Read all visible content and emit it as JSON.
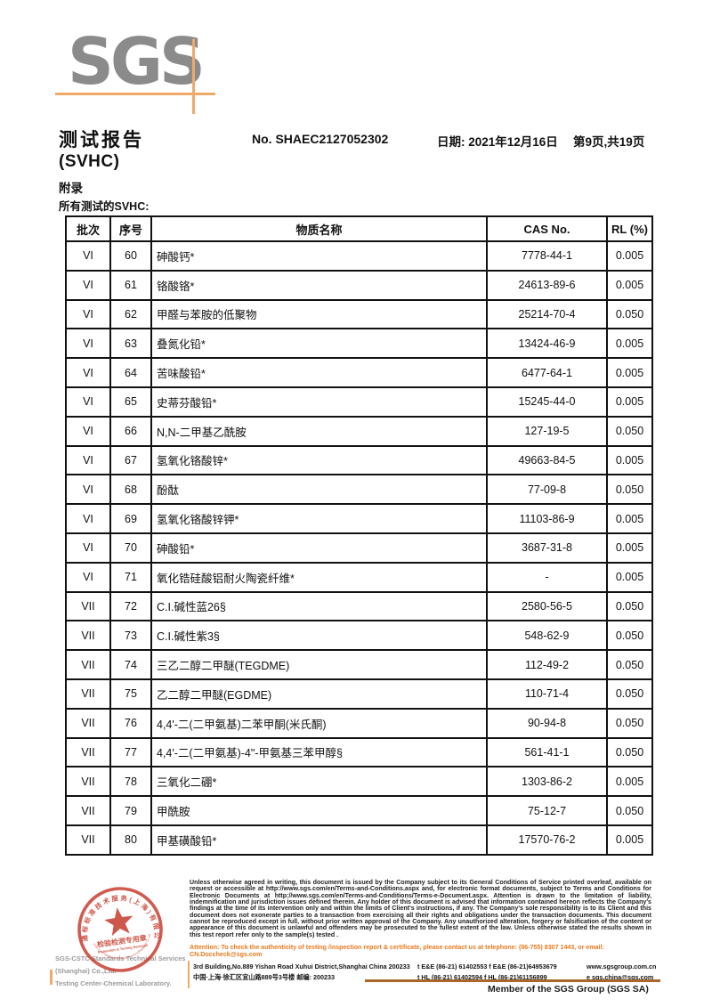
{
  "logo": {
    "text": "SGS"
  },
  "header": {
    "title": "测试报告",
    "subtitle": "(SVHC)",
    "report_no": "No. SHAEC2127052302",
    "date": "日期: 2021年12月16日",
    "page_info": "第9页,共19页",
    "appendix": "附录",
    "section_heading": "所有测试的SVHC:"
  },
  "table": {
    "columns": [
      "批次",
      "序号",
      "物质名称",
      "CAS No.",
      "RL (%)"
    ],
    "rows": [
      {
        "batch": "VI",
        "no": "60",
        "name": "砷酸钙*",
        "cas": "7778-44-1",
        "rl": "0.005"
      },
      {
        "batch": "VI",
        "no": "61",
        "name": "铬酸铬*",
        "cas": "24613-89-6",
        "rl": "0.005"
      },
      {
        "batch": "VI",
        "no": "62",
        "name": "甲醛与苯胺的低聚物",
        "cas": "25214-70-4",
        "rl": "0.050"
      },
      {
        "batch": "VI",
        "no": "63",
        "name": "叠氮化铅*",
        "cas": "13424-46-9",
        "rl": "0.005"
      },
      {
        "batch": "VI",
        "no": "64",
        "name": "苦味酸铅*",
        "cas": "6477-64-1",
        "rl": "0.005"
      },
      {
        "batch": "VI",
        "no": "65",
        "name": "史蒂芬酸铅*",
        "cas": "15245-44-0",
        "rl": "0.005"
      },
      {
        "batch": "VI",
        "no": "66",
        "name": "N,N-二甲基乙酰胺",
        "cas": "127-19-5",
        "rl": "0.050"
      },
      {
        "batch": "VI",
        "no": "67",
        "name": "氢氧化铬酸锌*",
        "cas": "49663-84-5",
        "rl": "0.005"
      },
      {
        "batch": "VI",
        "no": "68",
        "name": "酚酞",
        "cas": "77-09-8",
        "rl": "0.050"
      },
      {
        "batch": "VI",
        "no": "69",
        "name": "氢氧化铬酸锌钾*",
        "cas": "11103-86-9",
        "rl": "0.005"
      },
      {
        "batch": "VI",
        "no": "70",
        "name": "砷酸铅*",
        "cas": "3687-31-8",
        "rl": "0.005"
      },
      {
        "batch": "VI",
        "no": "71",
        "name": "氧化锆硅酸铝耐火陶瓷纤维*",
        "cas": "-",
        "rl": "0.005"
      },
      {
        "batch": "VII",
        "no": "72",
        "name": "C.I.碱性蓝26§",
        "cas": "2580-56-5",
        "rl": "0.050"
      },
      {
        "batch": "VII",
        "no": "73",
        "name": "C.I.碱性紫3§",
        "cas": "548-62-9",
        "rl": "0.050"
      },
      {
        "batch": "VII",
        "no": "74",
        "name": "三乙二醇二甲醚(TEGDME)",
        "cas": "112-49-2",
        "rl": "0.050"
      },
      {
        "batch": "VII",
        "no": "75",
        "name": "乙二醇二甲醚(EGDME)",
        "cas": "110-71-4",
        "rl": "0.050"
      },
      {
        "batch": "VII",
        "no": "76",
        "name": "4,4'-二(二甲氨基)二苯甲酮(米氏酮)",
        "cas": "90-94-8",
        "rl": "0.050"
      },
      {
        "batch": "VII",
        "no": "77",
        "name": "4,4'-二(二甲氨基)-4\"-甲氨基三苯甲醇§",
        "cas": "561-41-1",
        "rl": "0.050"
      },
      {
        "batch": "VII",
        "no": "78",
        "name": "三氧化二硼*",
        "cas": "1303-86-2",
        "rl": "0.005"
      },
      {
        "batch": "VII",
        "no": "79",
        "name": "甲酰胺",
        "cas": "75-12-7",
        "rl": "0.050"
      },
      {
        "batch": "VII",
        "no": "80",
        "name": "甲基磺酸铅*",
        "cas": "17570-76-2",
        "rl": "0.005"
      }
    ]
  },
  "footer": {
    "stamp": {
      "arc_top_text": "通标标准技术服务(上海)有限公司",
      "center_line1": "检验检测专用章",
      "center_line2": "Inspection & Testing Services",
      "arc_bottom_text": "SGS-CSTC Standards Technical Services(Shanghai) Co.,Ltd."
    },
    "company_en": "SGS-CSTC Standards Technical Services (Shanghai) Co.,Ltd.",
    "company_dept": "Testing Center-Chemical Laboratory.",
    "disclaimer": "Unless otherwise agreed in writing, this document is issued by the Company subject to its General Conditions of Service printed overleaf, available on request or accessible at http://www.sgs.com/en/Terms-and-Conditions.aspx and, for electronic format documents, subject to Terms and Conditions for Electronic Documents at http://www.sgs.com/en/Terms-and-Conditions/Terms-e-Document.aspx. Attention is drawn to the limitation of liability, indemnification and jurisdiction issues defined therein. Any holder of this document is advised that information contained hereon reflects the Company's findings at the time of its intervention only and within the limits of Client's instructions, if any. The Company's sole responsibility is to its Client and this document does not exonerate parties to a transaction from exercising all their rights and obligations under the transaction documents. This document cannot be reproduced except in full, without prior written approval of the Company. Any unauthorized alteration, forgery or falsification of the content or appearance of this document is unlawful and offenders may be prosecuted to the fullest extent of the law. Unless otherwise stated the results shown in this test report refer only to the sample(s) tested .",
    "attention": "Attention: To check the authenticity of testing /inspection report & certificate, please contact us at telephone: (86-755) 8307 1443, or email: CN.Doccheck@sgs.com",
    "address": {
      "en": "3rd Building,No.889 Yishan Road Xuhui District,Shanghai China   200233",
      "cn": "中国·上海·徐汇区宜山路889号3号楼  邮编: 200233",
      "tel_row1": "t E&E (86-21) 61402553   f E&E (86-21)64953679",
      "tel_row2": "t HL (86-21) 61402594   f HL (86-21)61156899",
      "web": "www.sgsgroup.com.cn",
      "email": "e  sgs.china@sgs.com"
    },
    "member": "Member of the SGS Group (SGS SA)"
  },
  "colors": {
    "logo_gray": "#8b8b8b",
    "accent_orange": "#edaa6b",
    "footer_orange_text": "#e8791e",
    "footer_line_brown": "#a9672b",
    "stamp_red": "#c63a2b"
  }
}
